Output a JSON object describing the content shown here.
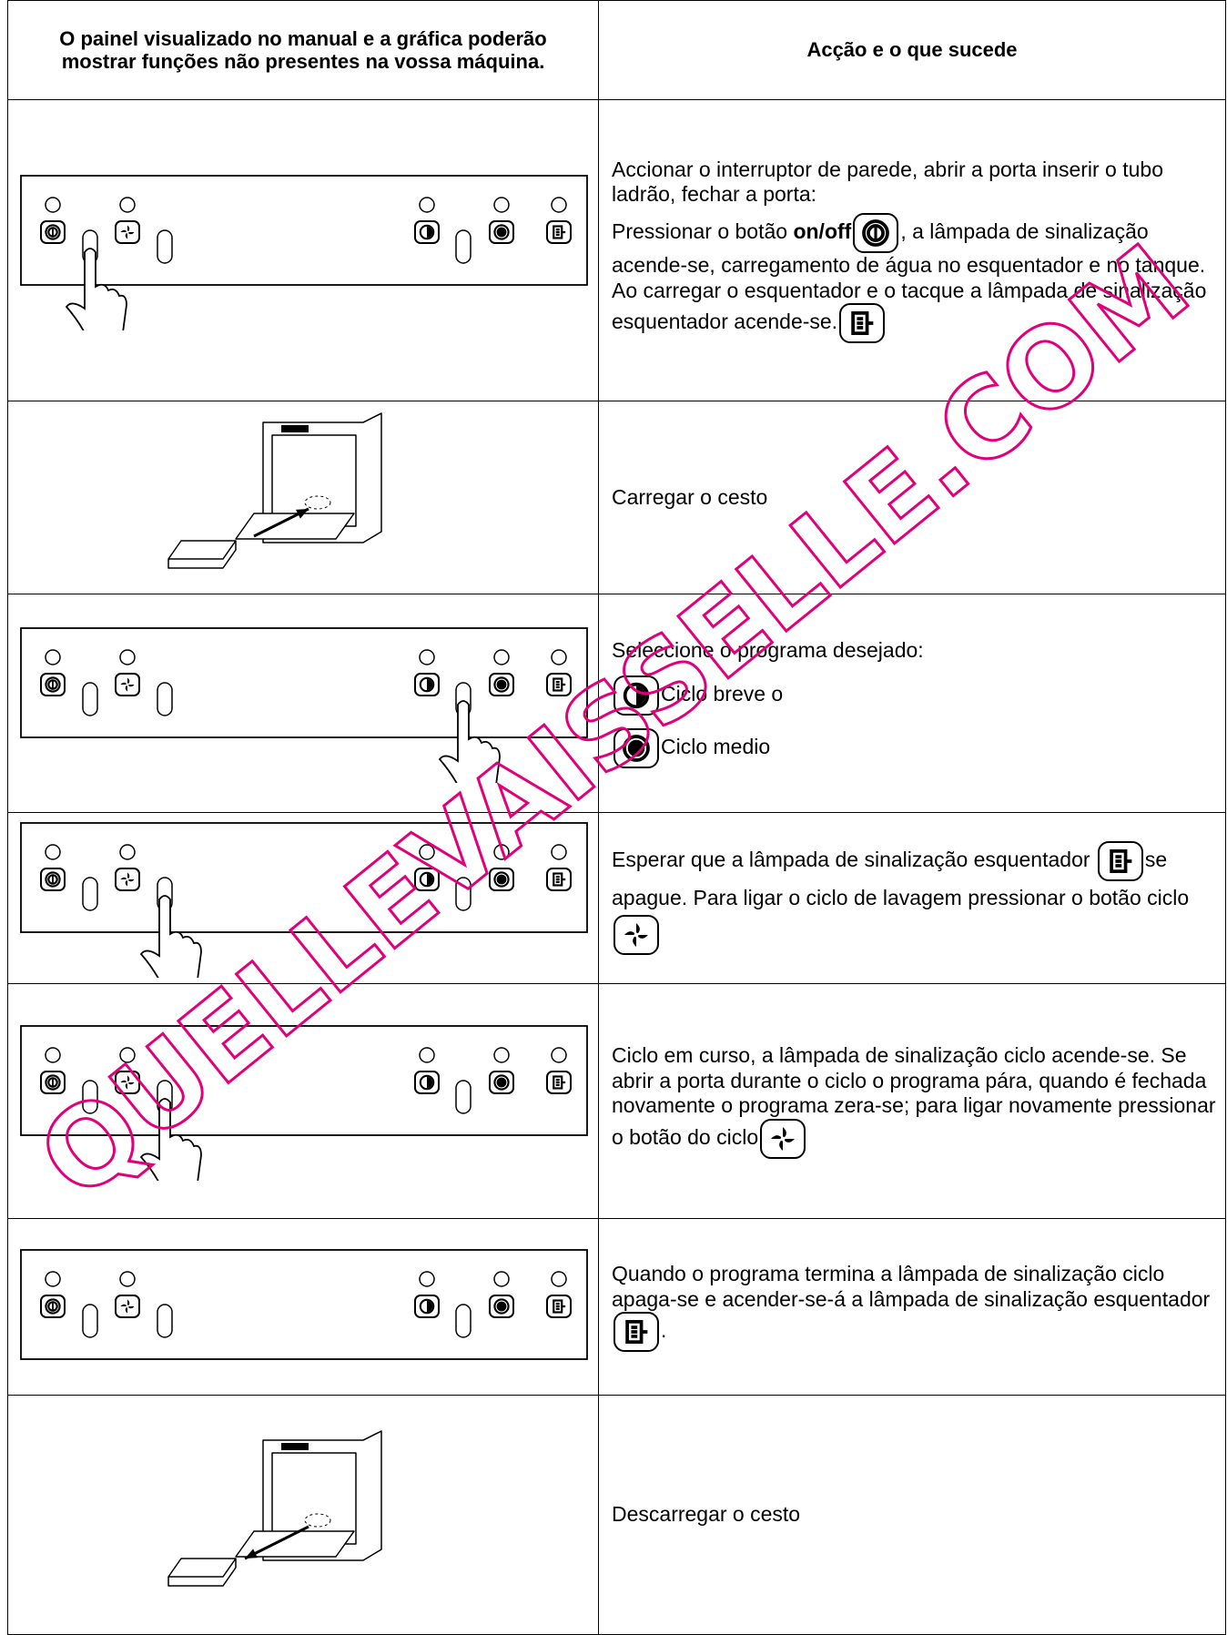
{
  "header": {
    "col1": "O painel visualizado no manual e a gráfica poderão mostrar funções não presentes na vossa máquina.",
    "col2": "Acção e o que sucede"
  },
  "rows": [
    {
      "parts": [
        "Accionar o interruptor de parede, abrir a porta inserir o tubo ladrão, fechar a porta:",
        "Pressionar o botão ",
        "on/off",
        ", a lâmpada de sinalização acende-se, carregamento de água no esquentador e no tanque.",
        "Ao carregar o esquentador e o tacque a lâmpada de sinalização esquentador acende-se."
      ]
    },
    {
      "parts": [
        "Carregar o cesto"
      ]
    },
    {
      "parts": [
        "Seleccione o programa desejado:",
        "Ciclo breve o",
        "Ciclo medio"
      ]
    },
    {
      "parts": [
        "Esperar que a lâmpada de sinalização esquentador",
        "se apague. Para ligar o ciclo  de lavagem pressionar  o  botão ciclo"
      ]
    },
    {
      "parts": [
        "Ciclo em curso, a lâmpada de sinalização ciclo acende-se. Se abrir a  porta durante o ciclo o programa pára, quando é fechada novamente o programa zera-se; para ligar novamente pressionar o botão do ciclo"
      ]
    },
    {
      "parts": [
        "Quando o programa termina a lâmpada de sinalização ciclo apaga-se e acender-se-á a lâmpada de sinalização esquentador",
        "."
      ]
    },
    {
      "parts": [
        "Descarregar o cesto"
      ]
    }
  ],
  "watermark": "QUELLEVAISSELLE.COM"
}
